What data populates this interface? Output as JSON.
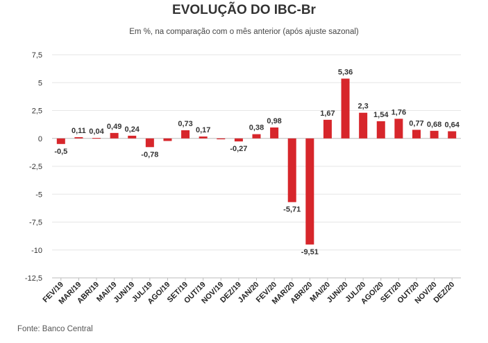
{
  "chart_data": {
    "type": "bar",
    "title": "EVOLUÇÃO DO IBC-Br",
    "subtitle": "Em %, na comparação com o mês anterior (após ajuste sazonal)",
    "source": "Fonte: Banco Central",
    "categories": [
      "FEV/19",
      "MAR/19",
      "ABR/19",
      "MAI/19",
      "JUN/19",
      "JUL/19",
      "AGO/19",
      "SET/19",
      "OUT/19",
      "NOV/19",
      "DEZ/19",
      "JAN/20",
      "FEV/20",
      "MAR/20",
      "ABR/20",
      "MAI/20",
      "JUN/20",
      "JUL/20",
      "AGO/20",
      "SET/20",
      "OUT/20",
      "NOV/20",
      "DEZ/20"
    ],
    "values": [
      -0.5,
      0.11,
      0.04,
      0.49,
      0.24,
      -0.78,
      -0.23,
      0.73,
      0.17,
      -0.08,
      -0.27,
      0.38,
      0.98,
      -5.71,
      -9.51,
      1.67,
      5.36,
      2.3,
      1.54,
      1.76,
      0.77,
      0.68,
      0.64
    ],
    "data_labels": [
      "-0,5",
      "0,11",
      "0,04",
      "0,49",
      "0,24",
      "-0,78",
      "",
      "0,73",
      "0,17",
      "",
      "-0,27",
      "0,38",
      "0,98",
      "-5,71",
      "-9,51",
      "1,67",
      "5,36",
      "2,3",
      "1,54",
      "1,76",
      "0,77",
      "0,68",
      "0,64"
    ],
    "yticks": [
      7.5,
      5,
      2.5,
      0,
      -2.5,
      -5,
      -7.5,
      -10,
      -12.5
    ],
    "ytick_labels": [
      "7,5",
      "5",
      "2,5",
      "0",
      "-2,5",
      "-5",
      "-7,5",
      "-10",
      "-12,5"
    ],
    "ylim": [
      -12.5,
      7.5
    ],
    "grid": true,
    "bar_color": "#d7262b",
    "xlabel": "",
    "ylabel": ""
  }
}
